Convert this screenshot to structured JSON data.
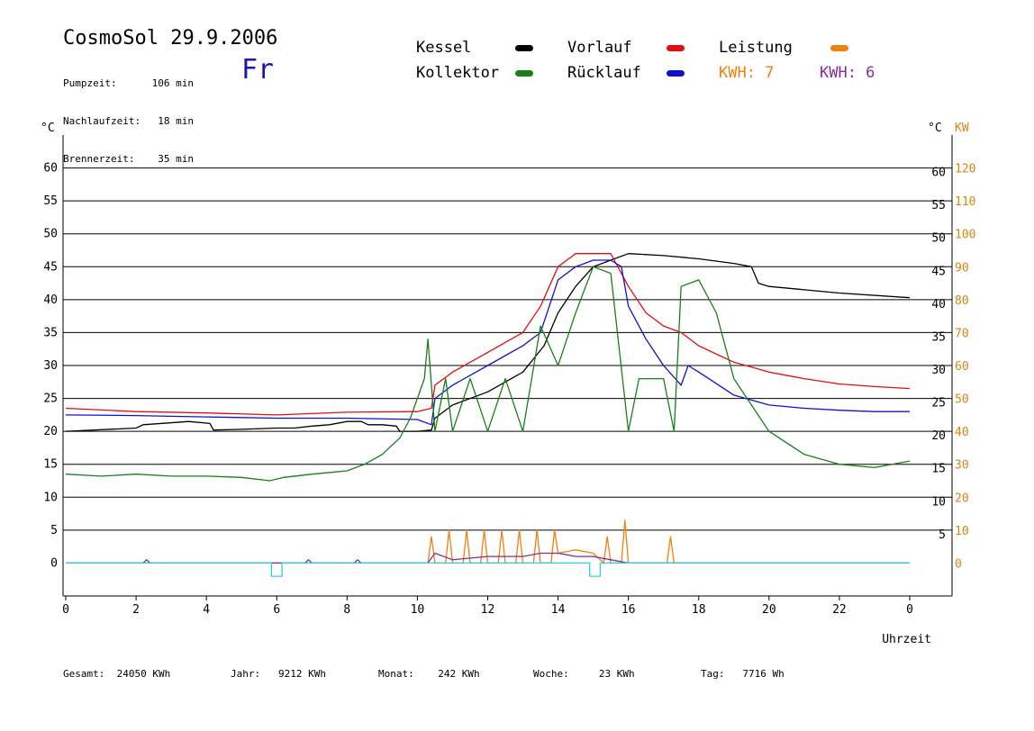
{
  "header": {
    "title": "CosmoSol 29.9.2006",
    "day": "Fr",
    "stats": [
      {
        "label": "Pumpzeit:",
        "value": "106 min"
      },
      {
        "label": "Nachlaufzeit:",
        "value": "18 min"
      },
      {
        "label": "Brennerzeit:",
        "value": "35 min"
      }
    ]
  },
  "legend": {
    "kessel": {
      "label": "Kessel",
      "color": "#000000"
    },
    "kollektor": {
      "label": "Kollektor",
      "color": "#188018"
    },
    "vorlauf": {
      "label": "Vorlauf",
      "color": "#e01010"
    },
    "ruecklauf": {
      "label": "Rücklauf",
      "color": "#1010d0"
    },
    "leistung": {
      "label": "Leistung",
      "color": "#f08010"
    },
    "kwh1": {
      "label": "KWH: 7",
      "color": "#f08010"
    },
    "kwh2": {
      "label": "KWH: 6",
      "color": "#8a2a9a"
    }
  },
  "footer": [
    {
      "label": "Gesamt:",
      "value": "24050 KWh"
    },
    {
      "label": "Jahr:",
      "value": "9212 KWh"
    },
    {
      "label": "Monat:",
      "value": "242 KWh"
    },
    {
      "label": "Woche:",
      "value": "23 KWh"
    },
    {
      "label": "Tag:",
      "value": "7716 Wh"
    }
  ],
  "chart_data": {
    "type": "line",
    "xlabel": "Uhrzeit",
    "ylabel_left": "°C",
    "ylabel_right": [
      "°C",
      "KW"
    ],
    "xlim": [
      0,
      24
    ],
    "ylim": [
      -5,
      65
    ],
    "ylim_kw": [
      -10,
      130
    ],
    "x_ticks": [
      "0",
      "2",
      "4",
      "6",
      "8",
      "10",
      "12",
      "14",
      "16",
      "18",
      "20",
      "22",
      "0"
    ],
    "y_ticks": [
      0,
      5,
      10,
      15,
      20,
      25,
      30,
      35,
      40,
      45,
      50,
      55,
      60
    ],
    "kw_ticks": [
      0,
      10,
      20,
      30,
      40,
      50,
      60,
      70,
      80,
      90,
      100,
      110,
      120
    ],
    "grid": "horizontal",
    "series": [
      {
        "name": "Kessel",
        "color": "#000000",
        "x": [
          0,
          2,
          2.2,
          3.5,
          4.1,
          4.2,
          5,
          6,
          6.5,
          7,
          7.5,
          8,
          8.4,
          8.6,
          9,
          9.4,
          9.5,
          10,
          10.4,
          10.5,
          11,
          12,
          13,
          13.6,
          14,
          14.5,
          15,
          15.5,
          16,
          17,
          18,
          19,
          19.5,
          19.7,
          20,
          22,
          24
        ],
        "y": [
          20,
          20.5,
          21,
          21.5,
          21.2,
          20.2,
          20.3,
          20.5,
          20.5,
          20.8,
          21,
          21.5,
          21.5,
          21,
          21,
          20.8,
          20,
          20,
          20.2,
          22,
          24,
          26,
          29,
          33,
          38,
          42,
          45,
          46,
          47,
          46.7,
          46.2,
          45.5,
          45,
          42.5,
          42,
          41,
          40.3
        ]
      },
      {
        "name": "Vorlauf",
        "color": "#e01010",
        "x": [
          0,
          2,
          4,
          6,
          8,
          10,
          10.4,
          10.5,
          11,
          12,
          13,
          13.5,
          14,
          14.5,
          15,
          15.5,
          16,
          16.5,
          17,
          17.5,
          18,
          19,
          20,
          21,
          22,
          23,
          24
        ],
        "y": [
          23.5,
          23,
          22.8,
          22.5,
          22.9,
          23,
          23.5,
          27,
          29,
          32,
          35,
          39,
          45,
          47,
          47,
          47,
          42,
          38,
          36,
          35,
          33,
          30.5,
          29,
          28,
          27.2,
          26.8,
          26.5
        ]
      },
      {
        "name": "Rücklauf",
        "color": "#1010d0",
        "x": [
          0,
          2,
          4,
          6,
          8,
          10,
          10.4,
          10.5,
          11,
          12,
          13,
          13.5,
          14,
          14.5,
          15,
          15.5,
          15.8,
          16,
          16.5,
          17,
          17.5,
          17.7,
          18,
          19,
          20,
          21,
          22,
          23,
          24
        ],
        "y": [
          22.5,
          22.4,
          22.2,
          22,
          22,
          21.8,
          21,
          25,
          27,
          30,
          33,
          35,
          43,
          45,
          46,
          46,
          45,
          39,
          34,
          30,
          27,
          30,
          29,
          25.5,
          24,
          23.5,
          23.2,
          23,
          23
        ]
      },
      {
        "name": "Kollektor",
        "color": "#188018",
        "x": [
          0,
          1,
          2,
          3,
          4,
          5,
          5.8,
          6.2,
          7,
          8,
          8.5,
          9,
          9.5,
          9.8,
          10,
          10.2,
          10.3,
          10.5,
          10.8,
          11,
          11.5,
          12,
          12.5,
          13,
          13.5,
          14,
          14.5,
          15,
          15.5,
          16,
          16.3,
          16.5,
          17,
          17.3,
          17.5,
          18,
          18.5,
          19,
          20,
          21,
          22,
          23,
          24
        ],
        "y": [
          13.5,
          13.2,
          13.5,
          13.2,
          13.2,
          13,
          12.5,
          13,
          13.5,
          14,
          15,
          16.5,
          19,
          22,
          25,
          28,
          34,
          20,
          28,
          20,
          28,
          20,
          28,
          20,
          36,
          30,
          38,
          45,
          44,
          20,
          28,
          28,
          28,
          20,
          42,
          43,
          38,
          28,
          20,
          16.5,
          15,
          14.5,
          15.5
        ]
      },
      {
        "name": "Leistung",
        "color": "#f08010",
        "axis": "kw",
        "x": [
          0,
          10.3,
          10.4,
          10.5,
          10.8,
          10.9,
          11,
          11.3,
          11.4,
          11.5,
          11.8,
          11.9,
          12,
          12.3,
          12.4,
          12.5,
          12.8,
          12.9,
          13,
          13.3,
          13.4,
          13.5,
          13.8,
          13.9,
          14,
          14.5,
          15,
          15.3,
          15.4,
          15.5,
          15.8,
          15.9,
          16,
          17.1,
          17.2,
          17.3,
          24
        ],
        "y": [
          0,
          0,
          8,
          0,
          0,
          10,
          0,
          0,
          10,
          0,
          0,
          10,
          0,
          0,
          10,
          0,
          0,
          10,
          0,
          0,
          10,
          0,
          0,
          10,
          3,
          4,
          3,
          0,
          8,
          0,
          0,
          13,
          0,
          0,
          8,
          0,
          0
        ]
      },
      {
        "name": "KWH",
        "color": "#8a2a9a",
        "axis": "kw",
        "x": [
          0,
          2.2,
          2.3,
          2.4,
          6.8,
          6.9,
          7,
          8.2,
          8.3,
          8.4,
          10.3,
          10.5,
          11,
          12,
          13,
          13.5,
          14,
          14.5,
          15,
          15.5,
          16,
          24
        ],
        "y": [
          0,
          0,
          1,
          0,
          0,
          1,
          0,
          0,
          1,
          0,
          0,
          3,
          1,
          2,
          2,
          3,
          3,
          2,
          2,
          1,
          0,
          0
        ]
      },
      {
        "name": "Pumpe",
        "color": "#30d0e0",
        "axis": "kw",
        "x": [
          0,
          5.85,
          5.85,
          6.15,
          6.15,
          14.9,
          14.9,
          15.2,
          15.2,
          24
        ],
        "y": [
          0,
          0,
          -4,
          -4,
          0,
          0,
          -4,
          -4,
          0,
          0
        ]
      }
    ]
  }
}
